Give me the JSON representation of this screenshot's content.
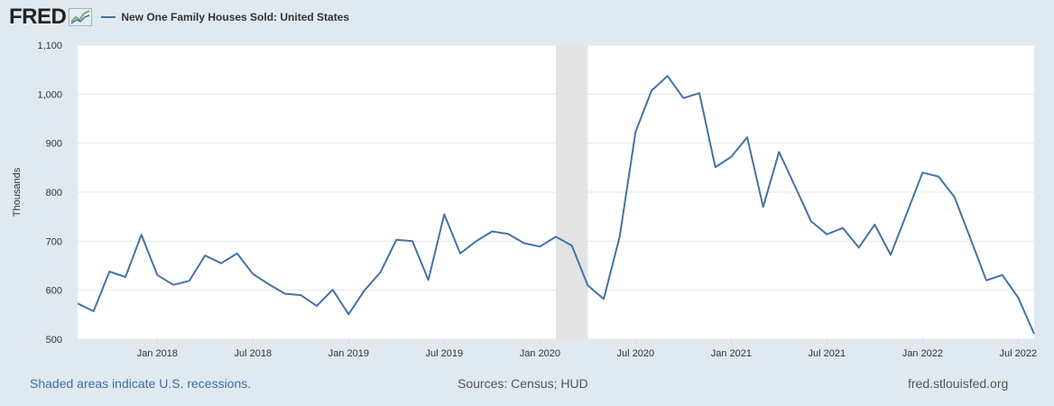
{
  "header": {
    "logo_text": "FRED",
    "legend_label": "New One Family Houses Sold: United States"
  },
  "footer": {
    "recession_note": "Shaded areas indicate U.S. recessions.",
    "sources": "Sources: Census; HUD",
    "site": "fred.stlouisfed.org"
  },
  "colors": {
    "series": "#4572a7",
    "recession": "#e3e3e3",
    "background": "#e1e9f0",
    "plot": "#ffffff",
    "grid": "#e6e6e6"
  },
  "chart_data": {
    "type": "line",
    "title": "",
    "xlabel": "",
    "ylabel": "Thousands",
    "ylim": [
      500,
      1100
    ],
    "yticks": [
      500,
      600,
      700,
      800,
      900,
      1000,
      1100
    ],
    "ytick_labels": [
      "500",
      "600",
      "700",
      "800",
      "900",
      "1,000",
      "1,100"
    ],
    "xlim": [
      "2017-08",
      "2022-08"
    ],
    "xticks": [
      "2018-01",
      "2018-07",
      "2019-01",
      "2019-07",
      "2020-01",
      "2020-07",
      "2021-01",
      "2021-07",
      "2022-01",
      "2022-07"
    ],
    "xtick_labels": [
      "Jan 2018",
      "Jul 2018",
      "Jan 2019",
      "Jul 2019",
      "Jan 2020",
      "Jul 2020",
      "Jan 2021",
      "Jul 2021",
      "Jan 2022",
      "Jul 2022"
    ],
    "grid": true,
    "legend": "top-left",
    "recessions": [
      {
        "start": "2020-02",
        "end": "2020-04"
      }
    ],
    "series": [
      {
        "name": "New One Family Houses Sold: United States",
        "x": [
          "2017-08",
          "2017-09",
          "2017-10",
          "2017-11",
          "2017-12",
          "2018-01",
          "2018-02",
          "2018-03",
          "2018-04",
          "2018-05",
          "2018-06",
          "2018-07",
          "2018-08",
          "2018-09",
          "2018-10",
          "2018-11",
          "2018-12",
          "2019-01",
          "2019-02",
          "2019-03",
          "2019-04",
          "2019-05",
          "2019-06",
          "2019-07",
          "2019-08",
          "2019-09",
          "2019-10",
          "2019-11",
          "2019-12",
          "2020-01",
          "2020-02",
          "2020-03",
          "2020-04",
          "2020-05",
          "2020-06",
          "2020-07",
          "2020-08",
          "2020-09",
          "2020-10",
          "2020-11",
          "2020-12",
          "2021-01",
          "2021-02",
          "2021-03",
          "2021-04",
          "2021-05",
          "2021-06",
          "2021-07",
          "2021-08",
          "2021-09",
          "2021-10",
          "2021-11",
          "2021-12",
          "2022-01",
          "2022-02",
          "2022-03",
          "2022-04",
          "2022-05",
          "2022-06",
          "2022-07",
          "2022-08"
        ],
        "values": [
          573,
          557,
          638,
          627,
          713,
          631,
          611,
          619,
          671,
          655,
          675,
          633,
          612,
          593,
          590,
          568,
          601,
          551,
          600,
          637,
          703,
          700,
          621,
          755,
          675,
          700,
          720,
          715,
          696,
          689,
          709,
          691,
          610,
          582,
          709,
          923,
          1007,
          1037,
          992,
          1002,
          851,
          872,
          912,
          770,
          882,
          812,
          741,
          714,
          727,
          687,
          734,
          672,
          756,
          840,
          832,
          790,
          706,
          620,
          631,
          585,
          511
        ]
      }
    ]
  }
}
